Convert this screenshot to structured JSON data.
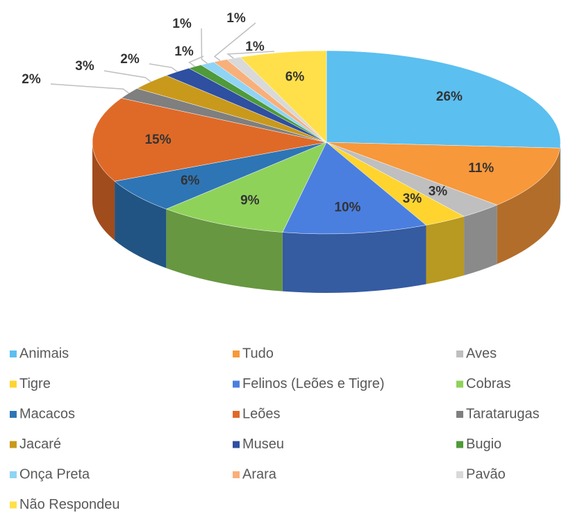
{
  "chart_data": {
    "type": "pie",
    "categories": [
      "Animais",
      "Tudo",
      "Aves",
      "Tigre",
      "Felinos (Leões e Tigre)",
      "Cobras",
      "Macacos",
      "Leões",
      "Taratarugas",
      "Jacaré",
      "Museu",
      "Bugio",
      "Onça Preta",
      "Arara",
      "Pavão",
      "Não Respondeu"
    ],
    "values": [
      26,
      11,
      3,
      3,
      10,
      9,
      6,
      15,
      2,
      3,
      2,
      1,
      1,
      1,
      1,
      6
    ],
    "value_labels": [
      "26%",
      "11%",
      "3%",
      "3%",
      "10%",
      "9%",
      "6%",
      "15%",
      "2%",
      "3%",
      "2%",
      "1%",
      "1%",
      "1%",
      "1%",
      "6%"
    ],
    "colors": [
      "#5bbff0",
      "#f7983a",
      "#bfbfbf",
      "#ffd42e",
      "#4a7fe0",
      "#8fd25a",
      "#2e75b6",
      "#df6a28",
      "#7f7f7f",
      "#c9991c",
      "#2f4fa0",
      "#4f9a3a",
      "#8fd4f5",
      "#f8b07a",
      "#d9d9d9",
      "#ffe04a"
    ],
    "legend": "bottom"
  }
}
